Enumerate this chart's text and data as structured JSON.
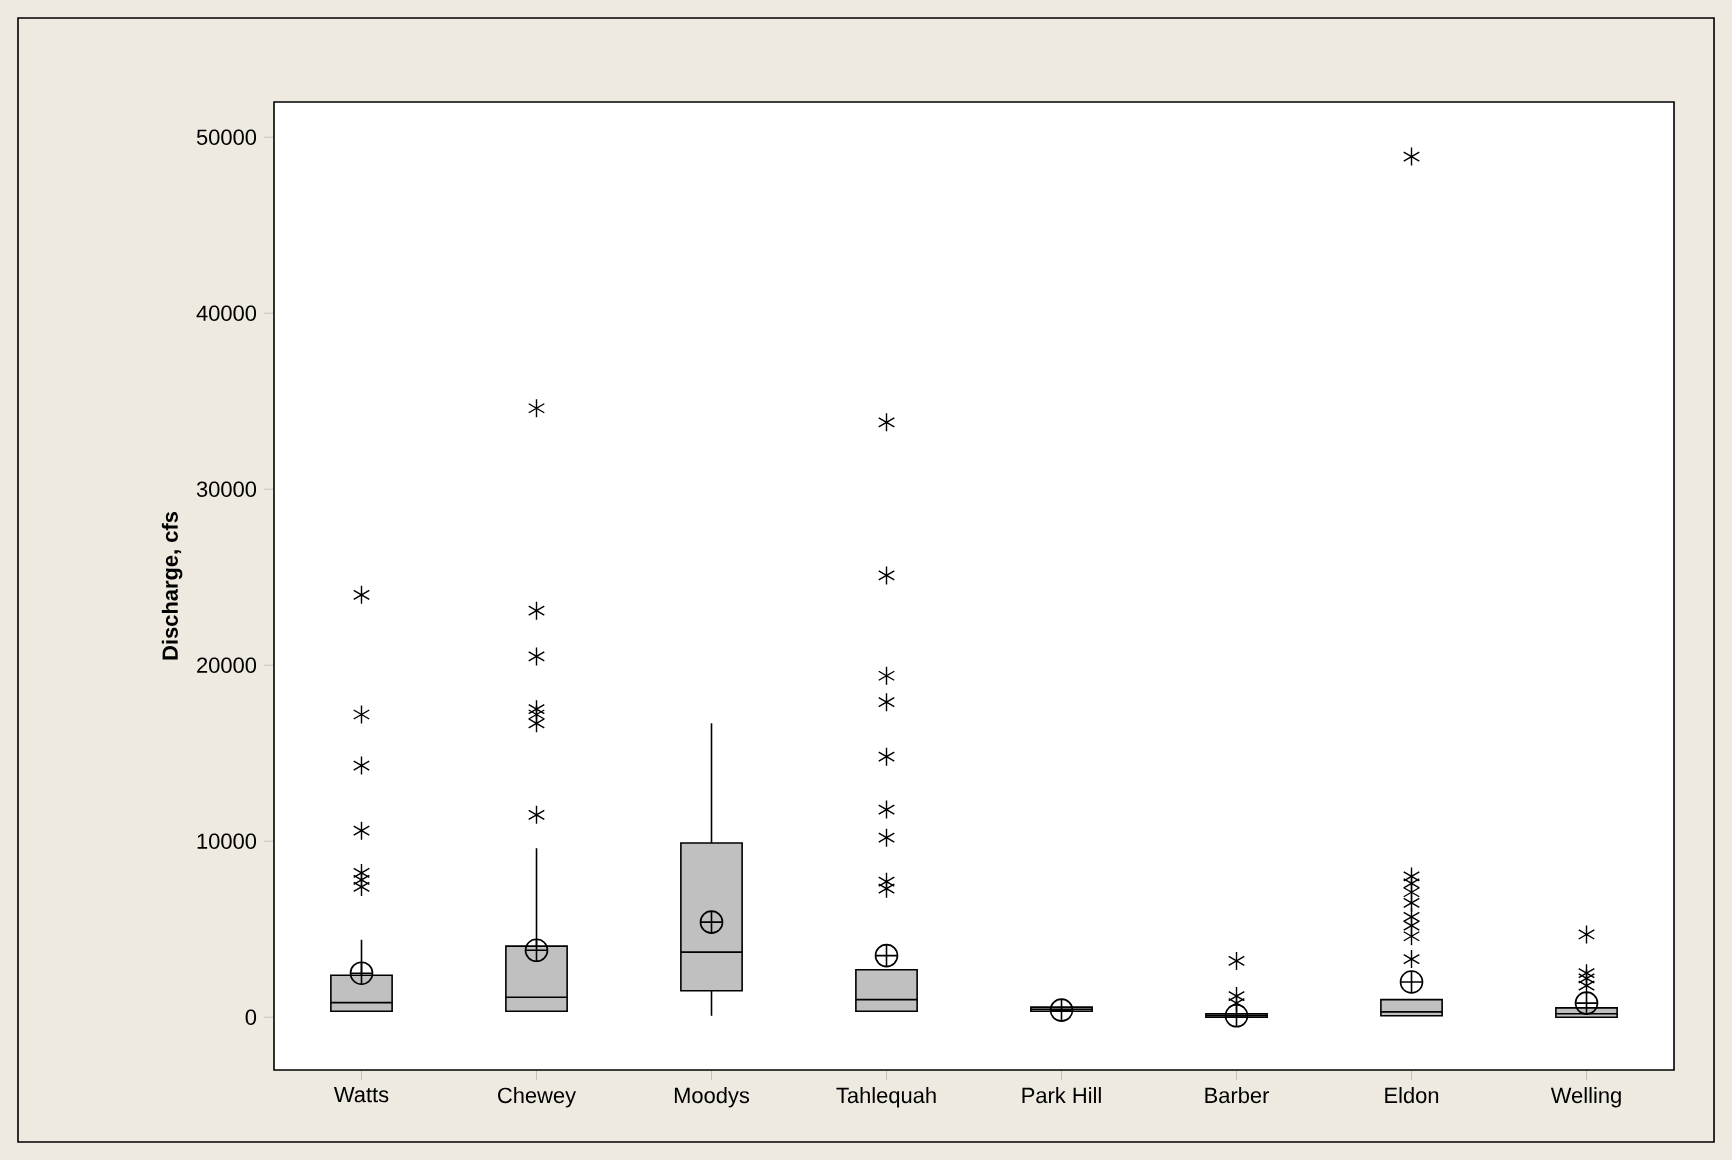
{
  "chart_data": {
    "type": "box",
    "ylabel": "Discharge, cfs",
    "categories": [
      "Watts",
      "Chewey",
      "Moodys",
      "Tahlequah",
      "Park Hill",
      "Barber",
      "Eldon",
      "Welling"
    ],
    "ylim": [
      -3000,
      52000
    ],
    "yticks": [
      0,
      10000,
      20000,
      30000,
      40000,
      50000
    ],
    "grid": false,
    "marker": "star",
    "series": [
      {
        "color": "#c0c0c0",
        "boxes": [
          {
            "low": 300,
            "q1": 340,
            "median": 830,
            "q3": 2380,
            "high": 4400,
            "mean": 2500,
            "outliers": [
              24000,
              17200,
              14300,
              10600,
              8200,
              7800,
              7400
            ]
          },
          {
            "low": 300,
            "q1": 340,
            "median": 1130,
            "q3": 4040,
            "high": 9600,
            "mean": 3800,
            "outliers": [
              34600,
              23100,
              20500,
              17500,
              17200,
              16700,
              11500
            ]
          },
          {
            "low": 80,
            "q1": 1500,
            "median": 3700,
            "q3": 9900,
            "high": 16700,
            "mean": 5400
          },
          {
            "low": 300,
            "q1": 340,
            "median": 1000,
            "q3": 2700,
            "high": 2700,
            "mean": 3500,
            "outliers": [
              33800,
              25100,
              19400,
              17900,
              14800,
              11800,
              10200,
              7700,
              7300
            ]
          },
          {
            "low": 300,
            "q1": 340,
            "median": 450,
            "q3": 570,
            "high": 600,
            "mean": 400
          },
          {
            "low": 0,
            "q1": 0,
            "median": 80,
            "q3": 190,
            "high": 190,
            "mean": 80,
            "outliers": [
              3200,
              1200,
              800
            ]
          },
          {
            "low": 80,
            "q1": 80,
            "median": 300,
            "q3": 1000,
            "high": 1000,
            "mean": 2000,
            "outliers": [
              48900,
              8000,
              7600,
              7100,
              6500,
              5700,
              5200,
              4600,
              3300
            ]
          },
          {
            "low": 0,
            "q1": 0,
            "median": 200,
            "q3": 530,
            "high": 530,
            "mean": 800,
            "outliers": [
              4700,
              2500,
              2200,
              1800
            ]
          }
        ]
      }
    ]
  }
}
